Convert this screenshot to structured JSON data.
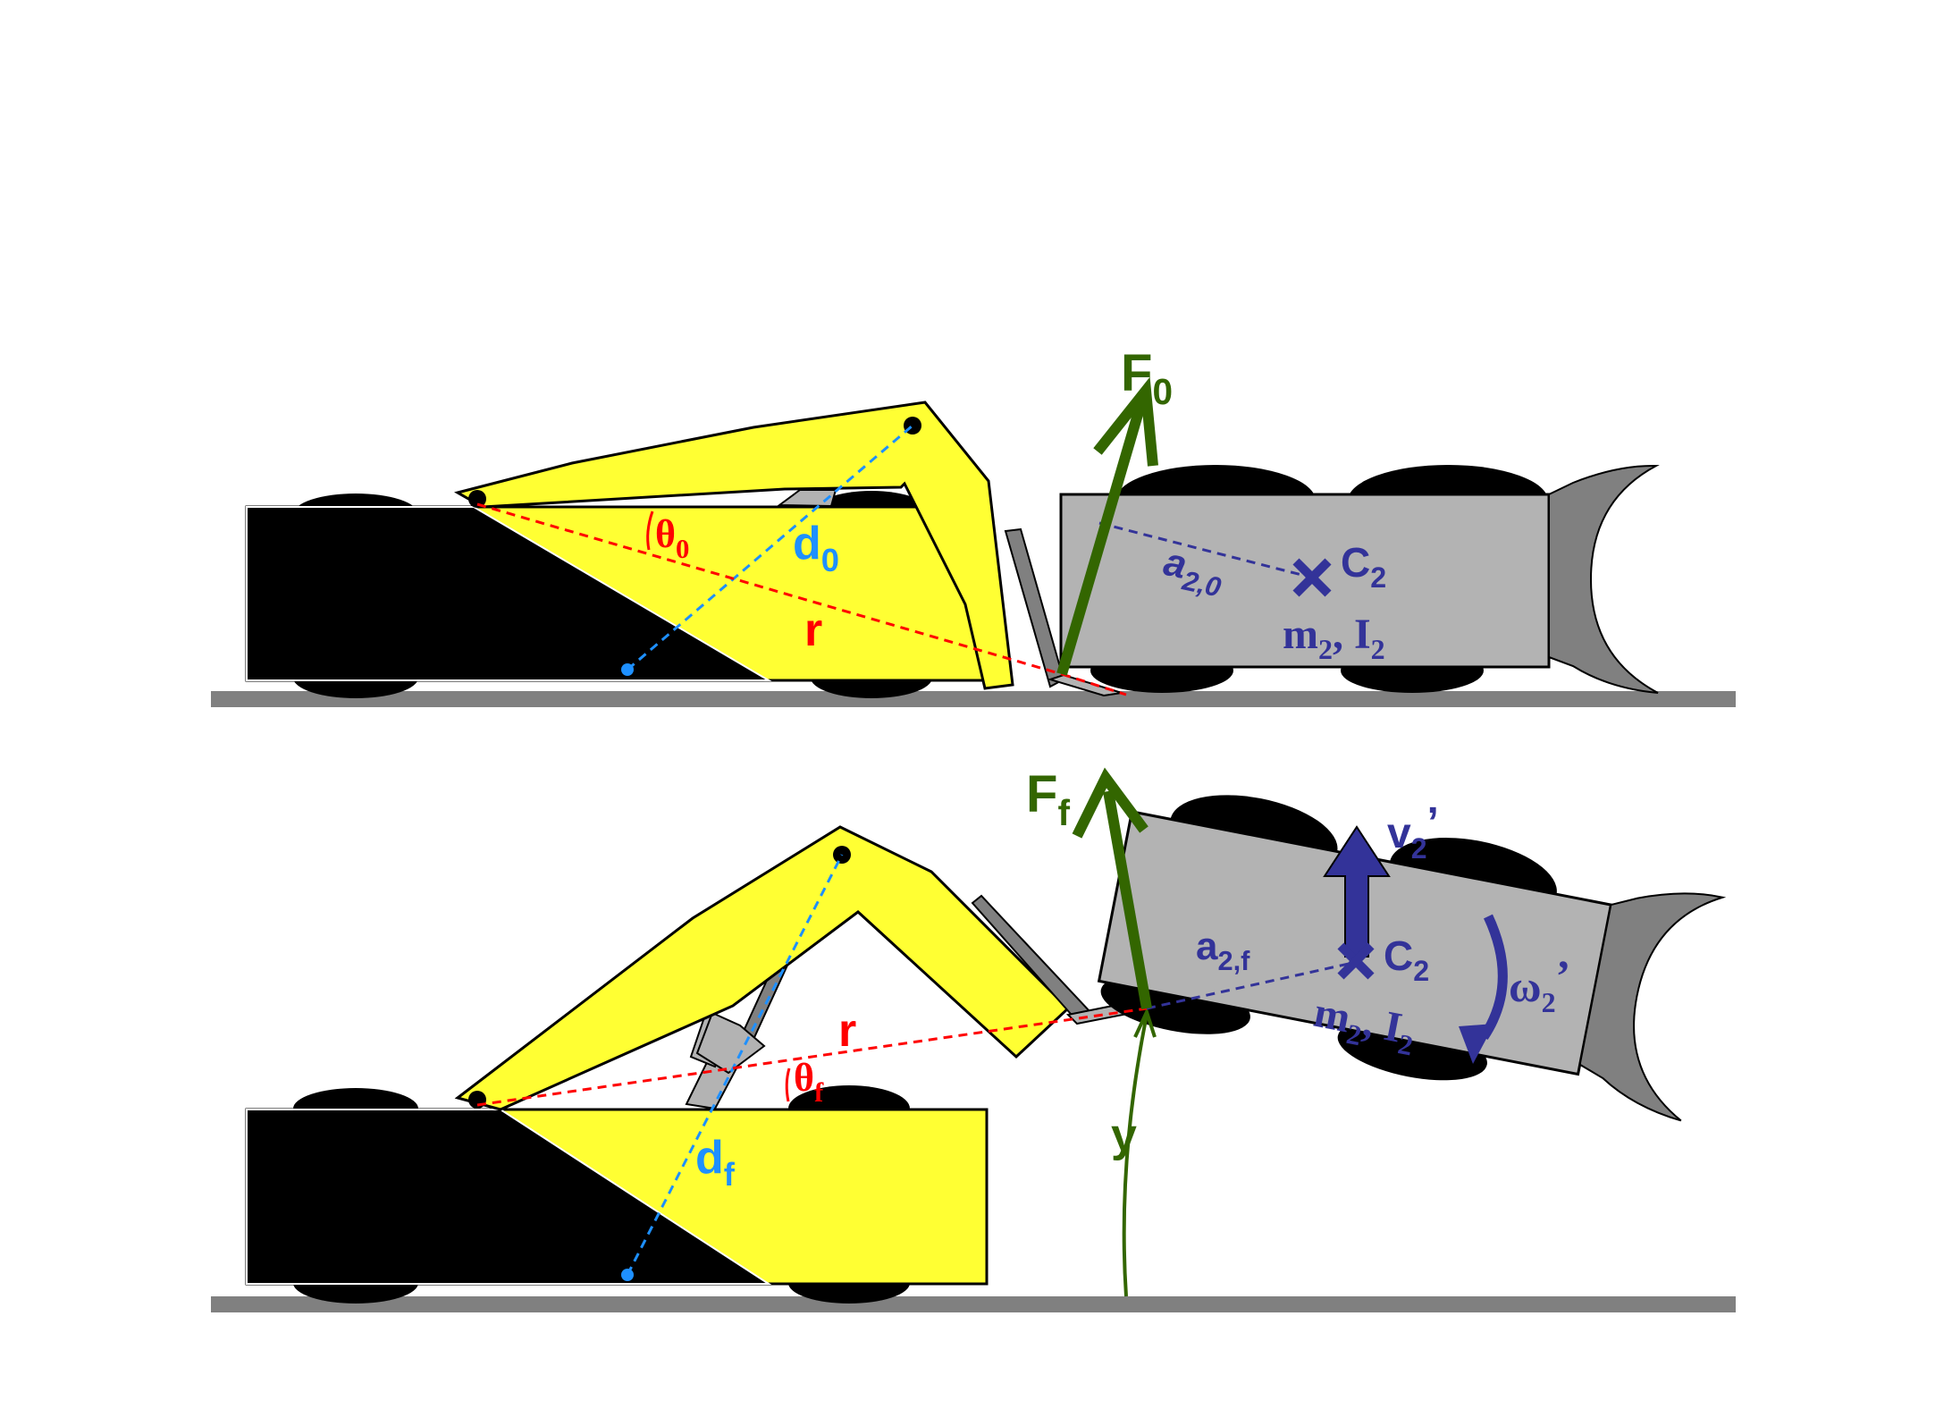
{
  "colors": {
    "robot_body": "#ffff33",
    "opponent_body": "#b3b3b3",
    "opponent_scoop": "#808080",
    "force_arrow": "#336600",
    "distance_line": "#1e90ff",
    "radius_line": "#ff0000",
    "velocity_arrow": "#333399",
    "ground": "#808080",
    "outline": "#000000"
  },
  "top_panel": {
    "force": {
      "main": "F",
      "sub": "0"
    },
    "distance": {
      "main": "d",
      "sub": "0"
    },
    "radius": "r",
    "angle": {
      "main": "θ",
      "sub": "0"
    },
    "lever": {
      "main": "a",
      "sub": "2,0"
    },
    "centroid": {
      "main": "C",
      "sub": "2"
    },
    "mass_label": {
      "m": "m",
      "m_sub": "2",
      "sep": ", ",
      "i": "I",
      "i_sub": "2"
    }
  },
  "bottom_panel": {
    "force": {
      "main": "F",
      "sub": "f"
    },
    "distance": {
      "main": "d",
      "sub": "f"
    },
    "radius": "r",
    "angle": {
      "main": "θ",
      "sub": "f"
    },
    "lever": {
      "main": "a",
      "sub": "2,f"
    },
    "centroid": {
      "main": "C",
      "sub": "2"
    },
    "mass_label": {
      "m": "m",
      "m_sub": "2",
      "sep": ", ",
      "i": "I",
      "i_sub": "2"
    },
    "velocity": {
      "main": "v",
      "sub": "2",
      "prime": "’"
    },
    "angular_velocity": {
      "main": "ω",
      "sub": "2",
      "prime": "’"
    },
    "height": "y"
  }
}
